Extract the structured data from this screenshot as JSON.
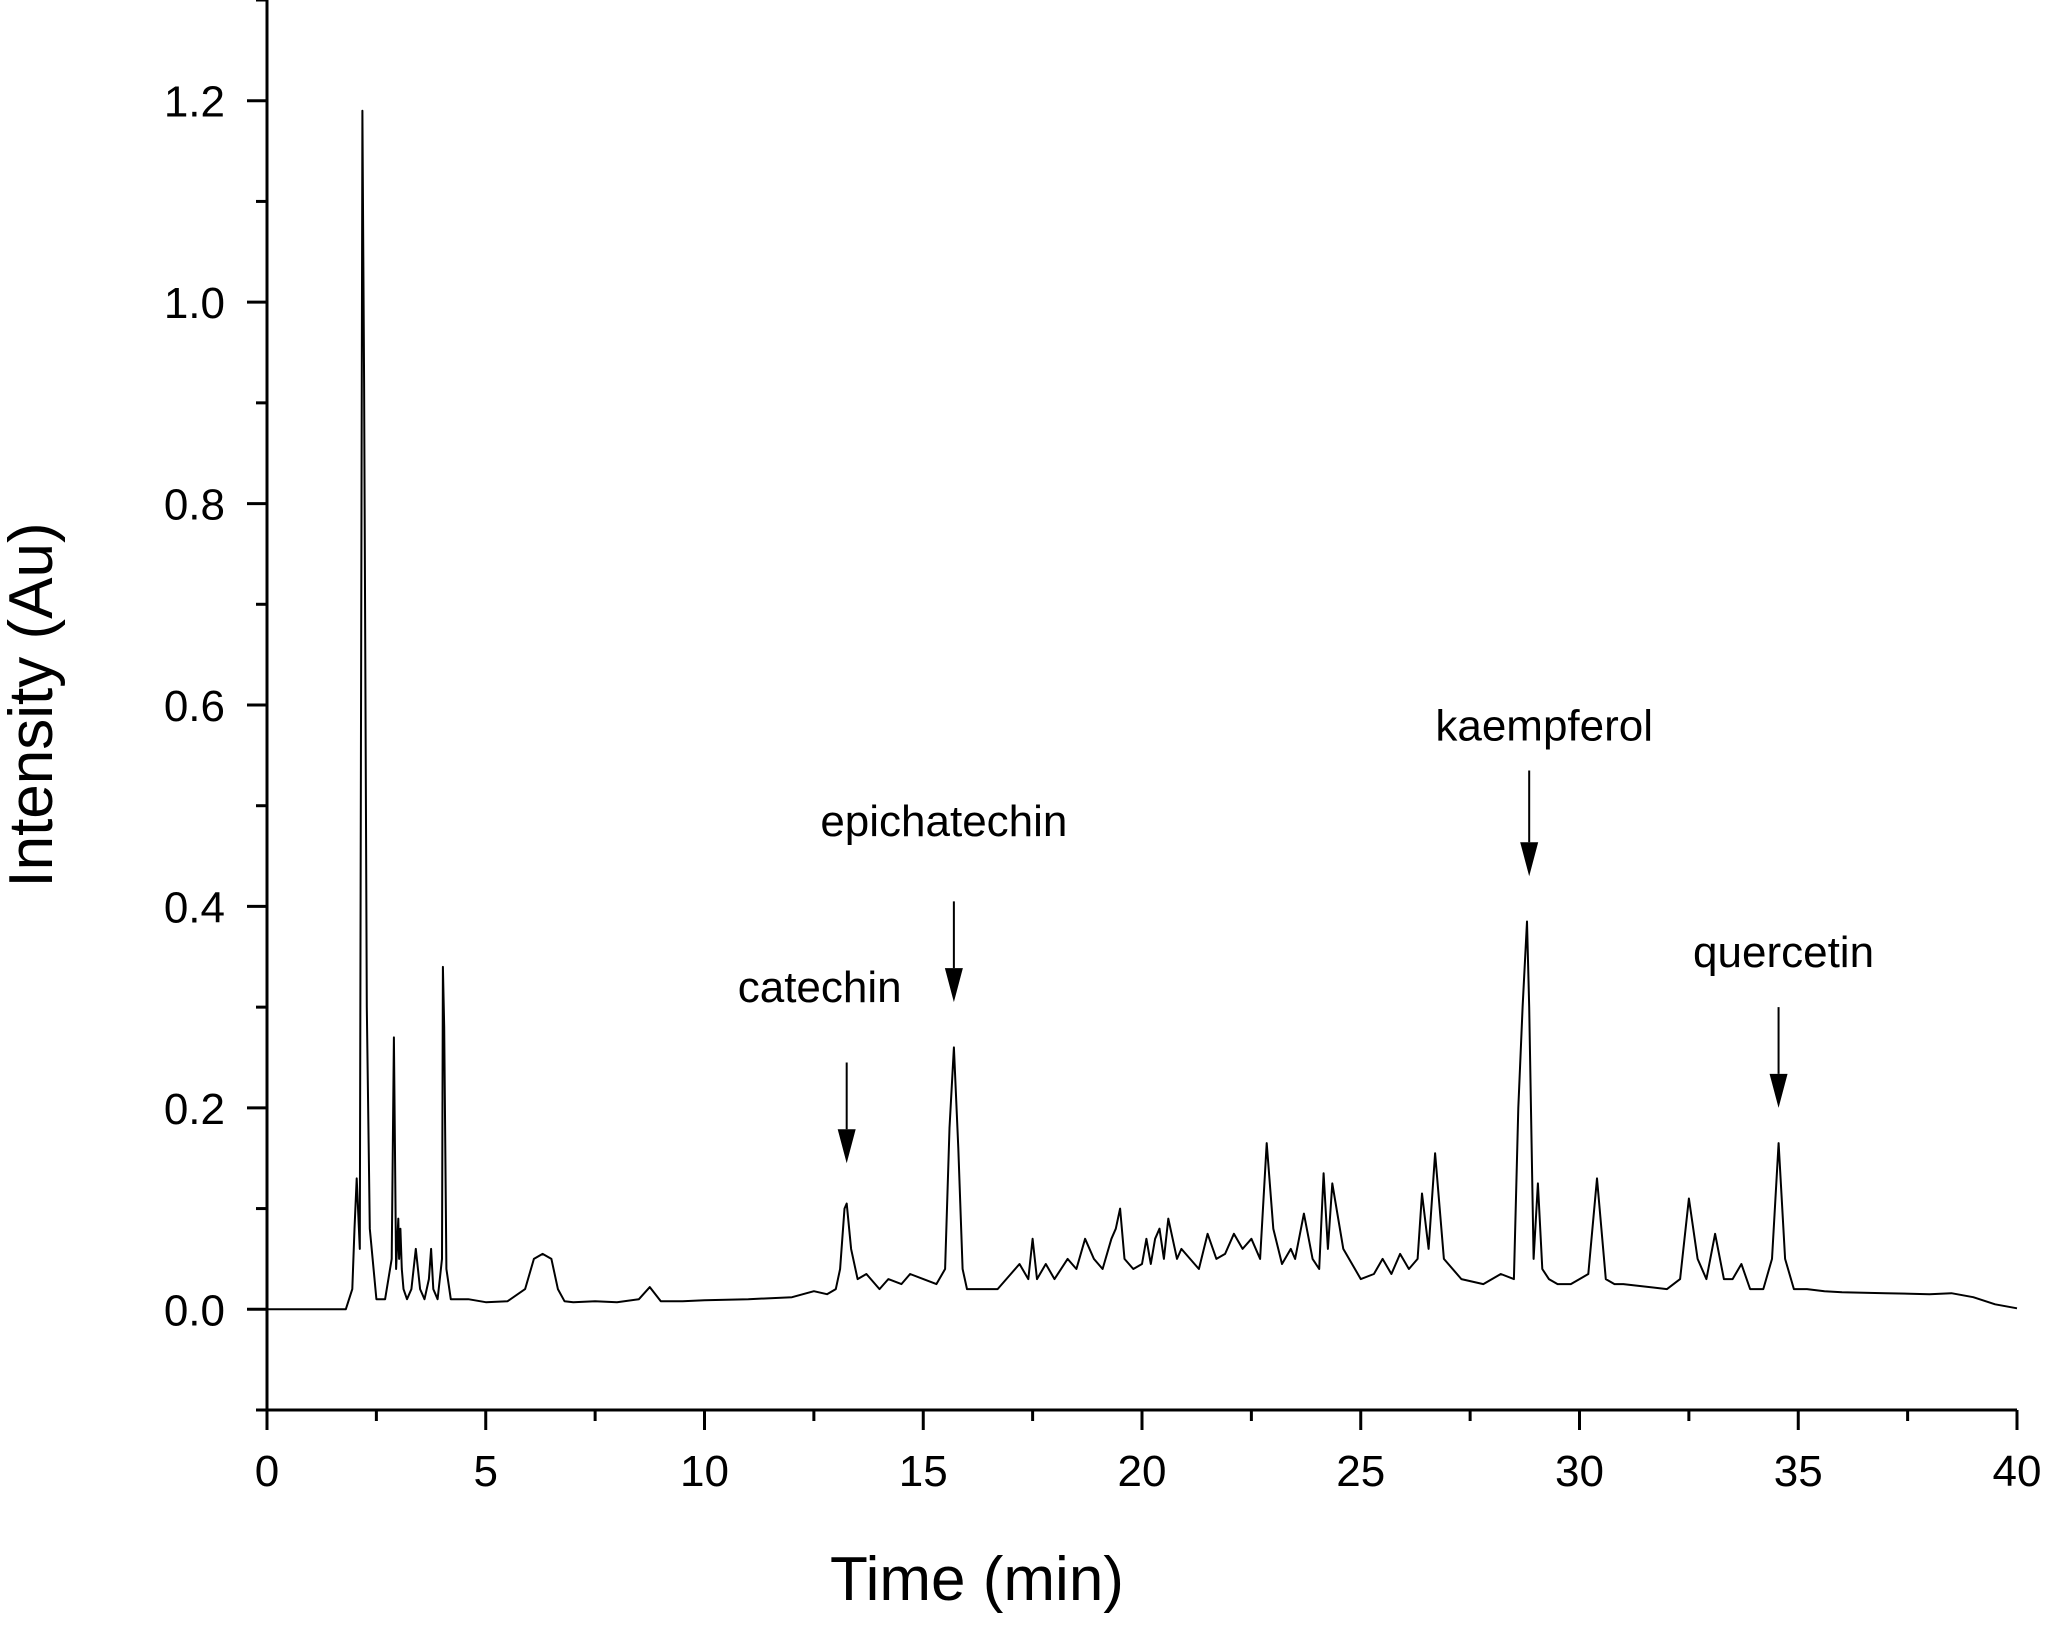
{
  "chart_data": {
    "type": "line",
    "title": "",
    "xlabel": "Time (min)",
    "ylabel": "Intensity (Au)",
    "xlim": [
      0,
      40
    ],
    "ylim": [
      -0.1,
      1.3
    ],
    "xticks": [
      0,
      5,
      10,
      15,
      20,
      25,
      30,
      35,
      40
    ],
    "yticks": [
      0.0,
      0.2,
      0.4,
      0.6,
      0.8,
      1.0,
      1.2
    ],
    "xtick_labels": [
      "0",
      "5",
      "10",
      "15",
      "20",
      "25",
      "30",
      "35",
      "40"
    ],
    "ytick_labels": [
      "0.0",
      "0.2",
      "0.4",
      "0.6",
      "0.8",
      "1.0",
      "1.2"
    ],
    "grid": false,
    "legend": "none",
    "line_color": "#000000",
    "series": [
      {
        "x": [
          0,
          1.8,
          1.95,
          2.0,
          2.05,
          2.12,
          2.18,
          2.22,
          2.28,
          2.35,
          2.5,
          2.7,
          2.85,
          2.9,
          2.95,
          3.0,
          3.02,
          3.05,
          3.08,
          3.12,
          3.2,
          3.3,
          3.4,
          3.5,
          3.6,
          3.7,
          3.75,
          3.8,
          3.9,
          4.0,
          4.02,
          4.05,
          4.1,
          4.2,
          4.35,
          4.6,
          5.0,
          5.5,
          5.9,
          6.1,
          6.3,
          6.5,
          6.65,
          6.8,
          7.0,
          7.5,
          8.0,
          8.5,
          8.75,
          9.0,
          9.5,
          10.0,
          11.0,
          12.0,
          12.5,
          12.8,
          13.0,
          13.1,
          13.2,
          13.25,
          13.35,
          13.5,
          13.7,
          14.0,
          14.2,
          14.5,
          14.7,
          15.0,
          15.3,
          15.5,
          15.6,
          15.7,
          15.8,
          15.9,
          16.0,
          16.3,
          16.7,
          17.0,
          17.2,
          17.4,
          17.5,
          17.6,
          17.8,
          18.0,
          18.3,
          18.5,
          18.7,
          18.9,
          19.1,
          19.3,
          19.4,
          19.5,
          19.6,
          19.8,
          20.0,
          20.1,
          20.2,
          20.3,
          20.4,
          20.5,
          20.6,
          20.8,
          20.9,
          21.1,
          21.3,
          21.5,
          21.7,
          21.9,
          22.1,
          22.3,
          22.5,
          22.7,
          22.85,
          23.0,
          23.2,
          23.4,
          23.5,
          23.7,
          23.9,
          24.05,
          24.15,
          24.25,
          24.35,
          24.6,
          25.0,
          25.3,
          25.5,
          25.7,
          25.9,
          26.1,
          26.3,
          26.4,
          26.55,
          26.7,
          26.9,
          27.3,
          27.8,
          28.2,
          28.5,
          28.6,
          28.7,
          28.8,
          28.85,
          28.95,
          29.05,
          29.15,
          29.3,
          29.5,
          29.8,
          30.0,
          30.2,
          30.4,
          30.6,
          30.8,
          31.0,
          32.0,
          32.3,
          32.5,
          32.7,
          32.9,
          33.1,
          33.3,
          33.5,
          33.7,
          33.9,
          34.2,
          34.4,
          34.55,
          34.7,
          34.9,
          35.2,
          35.6,
          36.0,
          37.0,
          38.0,
          38.5,
          39.0,
          39.5,
          40.0
        ],
        "y": [
          0.0,
          0.0,
          0.02,
          0.08,
          0.13,
          0.06,
          1.19,
          0.92,
          0.3,
          0.08,
          0.01,
          0.01,
          0.05,
          0.27,
          0.04,
          0.09,
          0.05,
          0.08,
          0.04,
          0.02,
          0.01,
          0.02,
          0.06,
          0.02,
          0.01,
          0.03,
          0.06,
          0.02,
          0.01,
          0.05,
          0.34,
          0.28,
          0.04,
          0.01,
          0.01,
          0.01,
          0.007,
          0.008,
          0.02,
          0.05,
          0.055,
          0.05,
          0.02,
          0.008,
          0.007,
          0.008,
          0.007,
          0.01,
          0.022,
          0.008,
          0.008,
          0.009,
          0.01,
          0.012,
          0.018,
          0.015,
          0.02,
          0.04,
          0.1,
          0.105,
          0.06,
          0.03,
          0.035,
          0.02,
          0.03,
          0.025,
          0.035,
          0.03,
          0.025,
          0.04,
          0.18,
          0.26,
          0.16,
          0.04,
          0.02,
          0.02,
          0.02,
          0.035,
          0.045,
          0.03,
          0.07,
          0.03,
          0.045,
          0.03,
          0.05,
          0.04,
          0.07,
          0.05,
          0.04,
          0.07,
          0.08,
          0.1,
          0.05,
          0.04,
          0.045,
          0.07,
          0.045,
          0.07,
          0.08,
          0.05,
          0.09,
          0.05,
          0.06,
          0.05,
          0.04,
          0.075,
          0.05,
          0.055,
          0.075,
          0.06,
          0.07,
          0.05,
          0.165,
          0.08,
          0.045,
          0.06,
          0.05,
          0.095,
          0.05,
          0.04,
          0.135,
          0.06,
          0.125,
          0.06,
          0.03,
          0.035,
          0.05,
          0.035,
          0.055,
          0.04,
          0.05,
          0.115,
          0.06,
          0.155,
          0.05,
          0.03,
          0.025,
          0.035,
          0.03,
          0.2,
          0.3,
          0.385,
          0.3,
          0.05,
          0.125,
          0.04,
          0.03,
          0.025,
          0.025,
          0.03,
          0.035,
          0.13,
          0.03,
          0.025,
          0.025,
          0.02,
          0.03,
          0.11,
          0.05,
          0.03,
          0.075,
          0.03,
          0.03,
          0.045,
          0.02,
          0.02,
          0.05,
          0.165,
          0.05,
          0.02,
          0.02,
          0.018,
          0.017,
          0.016,
          0.015,
          0.016,
          0.012,
          0.005,
          0.001
        ]
      }
    ],
    "annotations": [
      {
        "text": "catechin",
        "x": 13.25,
        "y": 0.105,
        "text_y": 0.305,
        "arrow_from": 0.245,
        "arrow_to": 0.145
      },
      {
        "text": "epichatechin",
        "x": 15.7,
        "y": 0.26,
        "text_y": 0.47,
        "arrow_from": 0.405,
        "arrow_to": 0.305
      },
      {
        "text": "kaempferol",
        "x": 28.85,
        "y": 0.385,
        "text_y": 0.565,
        "arrow_from": 0.535,
        "arrow_to": 0.43
      },
      {
        "text": "quercetin",
        "x": 34.55,
        "y": 0.165,
        "text_y": 0.34,
        "arrow_from": 0.3,
        "arrow_to": 0.2
      }
    ]
  }
}
